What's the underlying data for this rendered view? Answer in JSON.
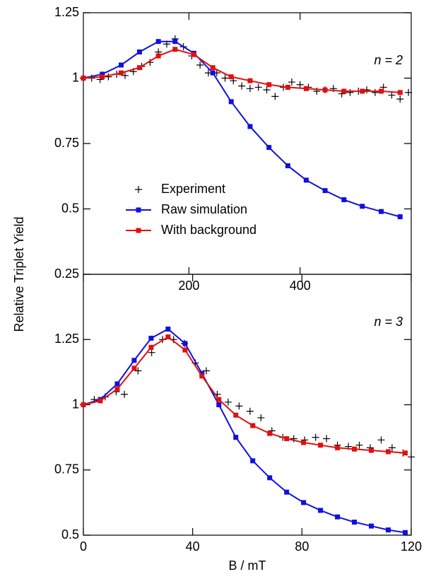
{
  "chart_data": [
    {
      "type": "line",
      "ylabel": "Relative Triplet Yield",
      "annotation": "n = 2",
      "xlim": [
        10,
        600
      ],
      "xticks": [
        200,
        400
      ],
      "ylim": [
        0.25,
        1.25
      ],
      "yticks": [
        0.25,
        0.5,
        0.75,
        1,
        1.25
      ],
      "legend": "center-left",
      "series": [
        {
          "name": "Experiment",
          "color": "#000000",
          "marker": "plus",
          "line": false,
          "x": [
            10,
            25,
            40,
            55,
            70,
            85,
            100,
            115,
            130,
            145,
            160,
            175,
            190,
            205,
            220,
            235,
            250,
            265,
            280,
            295,
            310,
            325,
            340,
            355,
            370,
            385,
            400,
            415,
            430,
            445,
            460,
            475,
            490,
            505,
            520,
            535,
            550,
            565,
            580,
            595
          ],
          "values": [
            1.0,
            1.0,
            0.995,
            1.005,
            1.015,
            1.01,
            1.025,
            1.045,
            1.06,
            1.1,
            1.13,
            1.15,
            1.12,
            1.085,
            1.05,
            1.02,
            1.02,
            1.0,
            0.99,
            0.97,
            0.96,
            0.965,
            0.955,
            0.93,
            0.965,
            0.985,
            0.975,
            0.965,
            0.95,
            0.955,
            0.96,
            0.94,
            0.945,
            0.95,
            0.955,
            0.945,
            0.965,
            0.935,
            0.92,
            0.945
          ]
        },
        {
          "name": "Raw simulation",
          "color": "#1010e0",
          "marker": "square",
          "line": true,
          "x": [
            10,
            44,
            78,
            111,
            145,
            175,
            209,
            243,
            276,
            310,
            344,
            378,
            411,
            445,
            479,
            512,
            546,
            580
          ],
          "values": [
            1.0,
            1.015,
            1.05,
            1.1,
            1.14,
            1.14,
            1.095,
            1.02,
            0.91,
            0.815,
            0.735,
            0.665,
            0.61,
            0.57,
            0.535,
            0.51,
            0.49,
            0.47
          ]
        },
        {
          "name": "With background",
          "color": "#e01010",
          "marker": "square",
          "line": true,
          "x": [
            10,
            44,
            78,
            111,
            145,
            175,
            209,
            243,
            276,
            310,
            344,
            378,
            411,
            445,
            479,
            512,
            546,
            580
          ],
          "values": [
            1.0,
            1.005,
            1.02,
            1.04,
            1.085,
            1.11,
            1.09,
            1.04,
            1.005,
            0.99,
            0.975,
            0.965,
            0.96,
            0.955,
            0.95,
            0.95,
            0.95,
            0.945
          ]
        }
      ]
    },
    {
      "type": "line",
      "xlabel": "B / mT",
      "annotation": "n = 3",
      "xlim": [
        0,
        120
      ],
      "xticks": [
        0,
        40,
        80,
        120
      ],
      "ylim": [
        0.5,
        1.5
      ],
      "yticks": [
        0.5,
        0.75,
        1,
        1.25
      ],
      "series": [
        {
          "color": "#000000",
          "marker": "plus",
          "line": false,
          "x": [
            0,
            4,
            8,
            12,
            15,
            20,
            25,
            29,
            33,
            37,
            41,
            45,
            49,
            53,
            57,
            61,
            65,
            69,
            73,
            77,
            81,
            85,
            89,
            93,
            97,
            101,
            105,
            109,
            113,
            117,
            120
          ],
          "values": [
            1.0,
            1.02,
            1.03,
            1.05,
            1.04,
            1.13,
            1.2,
            1.25,
            1.25,
            1.235,
            1.16,
            1.13,
            1.04,
            1.01,
            0.995,
            0.975,
            0.95,
            0.9,
            0.875,
            0.87,
            0.865,
            0.875,
            0.87,
            0.845,
            0.84,
            0.845,
            0.835,
            0.865,
            0.835,
            0.815,
            0.8
          ]
        },
        {
          "color": "#1010e0",
          "marker": "square",
          "line": true,
          "x": [
            0,
            6.2,
            12.4,
            18.6,
            24.8,
            31,
            37.2,
            43.4,
            49.6,
            55.8,
            62,
            68.2,
            74.4,
            80.6,
            86.8,
            93,
            99.2,
            105.4,
            111.6,
            117.8
          ],
          "values": [
            1.0,
            1.02,
            1.08,
            1.17,
            1.255,
            1.29,
            1.235,
            1.12,
            1.0,
            0.875,
            0.785,
            0.72,
            0.665,
            0.625,
            0.595,
            0.57,
            0.55,
            0.535,
            0.52,
            0.51
          ]
        },
        {
          "color": "#e01010",
          "marker": "square",
          "line": true,
          "x": [
            0,
            6.2,
            12.4,
            18.6,
            24.8,
            31,
            37.2,
            43.4,
            49.6,
            55.8,
            62,
            68.2,
            74.4,
            80.6,
            86.8,
            93,
            99.2,
            105.4,
            111.6,
            117.8
          ],
          "values": [
            1.0,
            1.015,
            1.06,
            1.14,
            1.22,
            1.26,
            1.21,
            1.11,
            1.02,
            0.96,
            0.92,
            0.89,
            0.87,
            0.855,
            0.845,
            0.835,
            0.83,
            0.825,
            0.82,
            0.815
          ]
        }
      ]
    }
  ]
}
